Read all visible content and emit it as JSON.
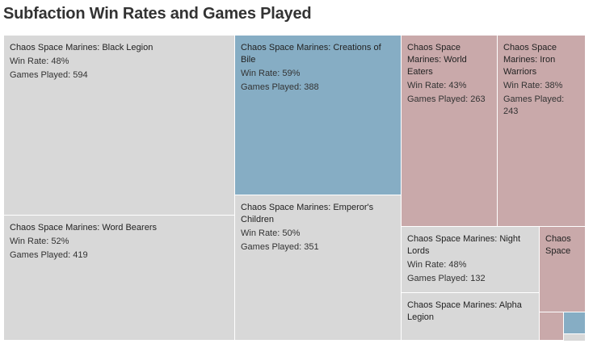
{
  "chart_data": {
    "type": "treemap",
    "title": "Subfaction Win Rates and Games Played",
    "size_measure": "Games Played",
    "color_measure": "Win Rate",
    "win_rate_label": "Win Rate:",
    "games_label": "Games Played:",
    "colors": {
      "high": "#86adc4",
      "mid": "#d8d8d8",
      "low": "#c9a9aa"
    },
    "items": [
      {
        "name": "Chaos Space Marines: Black Legion",
        "win_rate": "48%",
        "games": 594,
        "color": "#d8d8d8"
      },
      {
        "name": "Chaos Space Marines: Word Bearers",
        "win_rate": "52%",
        "games": 419,
        "color": "#d8d8d8"
      },
      {
        "name": "Chaos Space Marines: Creations of Bile",
        "win_rate": "59%",
        "games": 388,
        "color": "#86adc4"
      },
      {
        "name": "Chaos Space Marines: Emperor's Children",
        "win_rate": "50%",
        "games": 351,
        "color": "#d8d8d8"
      },
      {
        "name": "Chaos Space Marines: World Eaters",
        "win_rate": "43%",
        "games": 263,
        "color": "#c9a9aa"
      },
      {
        "name": "Chaos Space Marines: Iron Warriors",
        "win_rate": "38%",
        "games": 243,
        "color": "#c9a9aa"
      },
      {
        "name": "Chaos Space Marines: Night Lords",
        "win_rate": "48%",
        "games": 132,
        "color": "#d8d8d8"
      },
      {
        "name": "Chaos Space",
        "color": "#c9a9aa"
      },
      {
        "name": "Chaos Space Marines: Alpha Legion",
        "color": "#d8d8d8"
      },
      {
        "color": "#c9a9aa"
      },
      {
        "color": "#86adc4"
      },
      {
        "color": "#d8d8d8"
      }
    ]
  }
}
